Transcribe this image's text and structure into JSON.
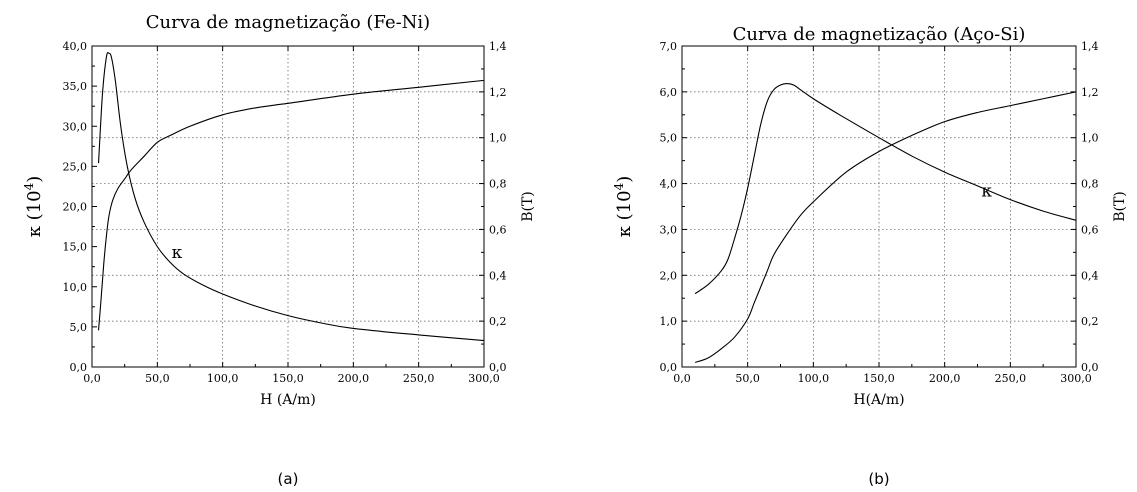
{
  "chart_data": [
    {
      "type": "line",
      "title": "Curva de magnetização (Fe-Ni)",
      "xlabel": "H (A/m)",
      "ylabel_left": "κ (10",
      "ylabel_left_sup": "4",
      "ylabel_left_close": ")",
      "ylabel_right": "B(T)",
      "caption": "(a)",
      "xlim": [
        0,
        300
      ],
      "ylim_left": [
        0,
        40
      ],
      "ylim_right": [
        0,
        1.4
      ],
      "xticks": [
        "0,0",
        "50,0",
        "100,0",
        "150,0",
        "200,0",
        "250,0",
        "300,0"
      ],
      "yticks_left": [
        "0,0",
        "5,0",
        "10,0",
        "15,0",
        "20,0",
        "25,0",
        "30,0",
        "35,0",
        "40,0"
      ],
      "yticks_right": [
        "0,0",
        "0,2",
        "0,4",
        "0,6",
        "0,8",
        "1,0",
        "1,2",
        "1,4"
      ],
      "grid": true,
      "series": [
        {
          "name": "κ",
          "axis": "left",
          "x": [
            5,
            8,
            11,
            13,
            15,
            18,
            22,
            27,
            33,
            40,
            50,
            60,
            70,
            85,
            100,
            125,
            150,
            175,
            200,
            250,
            300
          ],
          "y": [
            25.4,
            34,
            38.6,
            39.1,
            38.5,
            35.5,
            30,
            25,
            21,
            18,
            15,
            13,
            11.6,
            10.2,
            9.1,
            7.6,
            6.4,
            5.5,
            4.8,
            4.0,
            3.3
          ]
        },
        {
          "name": "",
          "axis": "right",
          "x": [
            5,
            7,
            9,
            11,
            13,
            16,
            20,
            25,
            30,
            40,
            50,
            60,
            75,
            100,
            125,
            150,
            200,
            250,
            300
          ],
          "y": [
            0.16,
            0.3,
            0.45,
            0.57,
            0.66,
            0.73,
            0.78,
            0.82,
            0.86,
            0.92,
            0.98,
            1.01,
            1.05,
            1.1,
            1.13,
            1.15,
            1.19,
            1.22,
            1.25
          ]
        }
      ],
      "annotation": {
        "text": "κ",
        "x": 65,
        "y": 14.3,
        "axis": "left"
      }
    },
    {
      "type": "line",
      "title": "Curva de magnetização (Aço-Si)",
      "xlabel": "H(A/m)",
      "ylabel_left": "κ (10",
      "ylabel_left_sup": "4",
      "ylabel_left_close": ")",
      "ylabel_right": "B(T)",
      "caption": "(b)",
      "xlim": [
        0,
        300
      ],
      "ylim_left": [
        0,
        7
      ],
      "ylim_right": [
        0,
        1.4
      ],
      "xticks": [
        "0,0",
        "50,0",
        "100,0",
        "150,0",
        "200,0",
        "250,0",
        "300,0"
      ],
      "yticks_left": [
        "0,0",
        "1,0",
        "2,0",
        "3,0",
        "4,0",
        "5,0",
        "6,0",
        "7,0"
      ],
      "yticks_right": [
        "0,0",
        "0,2",
        "0,4",
        "0,6",
        "0,8",
        "1,0",
        "1,2",
        "1,4"
      ],
      "grid": true,
      "series": [
        {
          "name": "κ",
          "axis": "left",
          "x": [
            10,
            20,
            30,
            35,
            40,
            45,
            50,
            55,
            60,
            65,
            70,
            75,
            80,
            85,
            90,
            100,
            120,
            150,
            175,
            200,
            225,
            250,
            275,
            300
          ],
          "y": [
            1.6,
            1.8,
            2.1,
            2.35,
            2.8,
            3.3,
            3.9,
            4.6,
            5.3,
            5.8,
            6.05,
            6.15,
            6.18,
            6.15,
            6.05,
            5.85,
            5.5,
            5.0,
            4.6,
            4.25,
            3.95,
            3.65,
            3.4,
            3.2
          ]
        },
        {
          "name": "",
          "axis": "right",
          "x": [
            10,
            20,
            30,
            40,
            50,
            55,
            60,
            65,
            70,
            80,
            90,
            100,
            125,
            150,
            175,
            200,
            225,
            250,
            275,
            300
          ],
          "y": [
            0.02,
            0.04,
            0.08,
            0.13,
            0.21,
            0.28,
            0.35,
            0.42,
            0.49,
            0.58,
            0.66,
            0.72,
            0.85,
            0.94,
            1.01,
            1.07,
            1.11,
            1.14,
            1.17,
            1.2
          ]
        }
      ],
      "annotation": {
        "text": "κ",
        "x": 232,
        "y": 3.85,
        "axis": "left"
      }
    }
  ]
}
